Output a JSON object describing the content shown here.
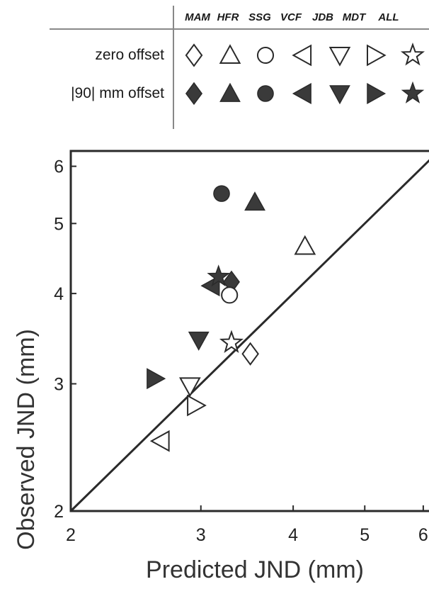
{
  "legend": {
    "columns": [
      "MAM",
      "HFR",
      "SSG",
      "VCF",
      "JDB",
      "MDT",
      "ALL"
    ],
    "rows": [
      {
        "label": "zero offset",
        "filled": false
      },
      {
        "label": "|90| mm offset",
        "filled": true
      }
    ],
    "markers": [
      "diamond",
      "triangle-up",
      "circle",
      "triangle-left",
      "triangle-down",
      "triangle-right",
      "star"
    ]
  },
  "chart_data": {
    "type": "scatter",
    "title": "",
    "xlabel": "Predicted JND (mm)",
    "ylabel": "Observed JND (mm)",
    "xscale": "log",
    "yscale": "log",
    "xlim": [
      2,
      6.3
    ],
    "ylim": [
      2,
      6.3
    ],
    "xticks": [
      2,
      3,
      4,
      5,
      6
    ],
    "yticks": [
      2,
      3,
      4,
      5,
      6
    ],
    "reference_line": "y = x",
    "grid": false,
    "colors": {
      "filled": "#3a3a3a",
      "stroke": "#2a2a2a"
    },
    "series": [
      {
        "name": "MAM",
        "marker": "diamond",
        "points": [
          {
            "offset": "zero",
            "x": 3.5,
            "y": 3.3
          },
          {
            "offset": "90",
            "x": 3.3,
            "y": 4.15
          }
        ]
      },
      {
        "name": "HFR",
        "marker": "triangle-up",
        "points": [
          {
            "offset": "zero",
            "x": 4.15,
            "y": 4.65
          },
          {
            "offset": "90",
            "x": 3.55,
            "y": 5.35
          }
        ]
      },
      {
        "name": "SSG",
        "marker": "circle",
        "points": [
          {
            "offset": "zero",
            "x": 3.28,
            "y": 3.98
          },
          {
            "offset": "90",
            "x": 3.2,
            "y": 5.5
          }
        ]
      },
      {
        "name": "VCF",
        "marker": "triangle-left",
        "points": [
          {
            "offset": "zero",
            "x": 2.65,
            "y": 2.5
          },
          {
            "offset": "90",
            "x": 3.1,
            "y": 4.1
          }
        ]
      },
      {
        "name": "JDB",
        "marker": "triangle-down",
        "points": [
          {
            "offset": "zero",
            "x": 2.9,
            "y": 2.98
          },
          {
            "offset": "90",
            "x": 2.98,
            "y": 3.45
          }
        ]
      },
      {
        "name": "MDT",
        "marker": "triangle-right",
        "points": [
          {
            "offset": "zero",
            "x": 2.95,
            "y": 2.8
          },
          {
            "offset": "90",
            "x": 2.6,
            "y": 3.05
          }
        ]
      },
      {
        "name": "ALL",
        "marker": "star",
        "points": [
          {
            "offset": "zero",
            "x": 3.3,
            "y": 3.42
          },
          {
            "offset": "90",
            "x": 3.17,
            "y": 4.22
          }
        ]
      }
    ]
  }
}
